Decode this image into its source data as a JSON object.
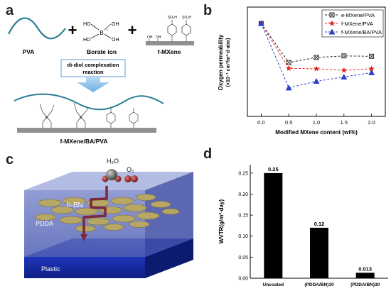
{
  "panels": {
    "a": "a",
    "b": "b",
    "c": "c",
    "d": "d"
  },
  "scheme_a": {
    "pva_label": "PVA",
    "borate_label": "Borate ion",
    "borate_B": "B",
    "borate_minus": "−",
    "oh": "OH",
    "ho": "HO",
    "fmxene_label": "f-MXene",
    "so3h": "SO₃H",
    "reaction_label_line1": "di-diol complexation",
    "reaction_label_line2": "reaction",
    "plus": "+",
    "product_label": "f-MXene/BA/PVA",
    "colors": {
      "pva_line": "#2a7d95",
      "arrow": "#8fc4e8",
      "substrate": "#909090"
    }
  },
  "illustration_c": {
    "h2o_label": "H₂O",
    "o2_label": "O₂",
    "hbn_label": "h-BN",
    "pdda_label": "PDDA",
    "plastic_label": "Plastic",
    "colors": {
      "pdda_box": "#6f7fc2",
      "plastic": "#1a2fa0",
      "hexagon": "#b7a764",
      "path": "#7a2a3a"
    }
  },
  "chart_data": [
    {
      "panel": "b",
      "type": "line",
      "ylabel_line1": "Oxygen permeability",
      "ylabel_line2": "(×10⁻¹ cm³/m²·d·atm)",
      "xlabel": "Modified MXene content (wt%)",
      "x": [
        0.0,
        0.5,
        1.0,
        1.5,
        2.0
      ],
      "xticks": [
        "0.0",
        "0.5",
        "1.0",
        "1.5",
        "2.0"
      ],
      "xlim": [
        -0.25,
        2.25
      ],
      "ylim": [
        0,
        2.8
      ],
      "grid": false,
      "legend_position": "top-right",
      "series": [
        {
          "name": "e-MXene/PVA",
          "values": [
            2.38,
            1.38,
            1.51,
            1.55,
            1.54
          ],
          "color": "#222222",
          "marker": "square-x"
        },
        {
          "name": "f-MXene/PVA",
          "values": [
            2.38,
            1.23,
            1.22,
            1.18,
            1.22
          ],
          "color": "#e8231f",
          "marker": "star"
        },
        {
          "name": "f-MXene/BA/PVA",
          "values": [
            2.38,
            0.73,
            0.9,
            1.01,
            1.12
          ],
          "color": "#2b3fc8",
          "marker": "triangle"
        }
      ]
    },
    {
      "panel": "d",
      "type": "bar",
      "ylabel": "WVTR(g/m²·day)",
      "categories": [
        "Uncoated",
        "(PDDA/BN)10",
        "(PDDA/BN)30"
      ],
      "values": [
        0.25,
        0.12,
        0.013
      ],
      "data_labels": [
        "0.25",
        "0.12",
        "0.013"
      ],
      "yticks": [
        "0.00",
        "0.05",
        "0.10",
        "0.15",
        "0.20",
        "0.25"
      ],
      "ylim": [
        0,
        0.27
      ],
      "grid": false,
      "color": "#000000"
    }
  ]
}
